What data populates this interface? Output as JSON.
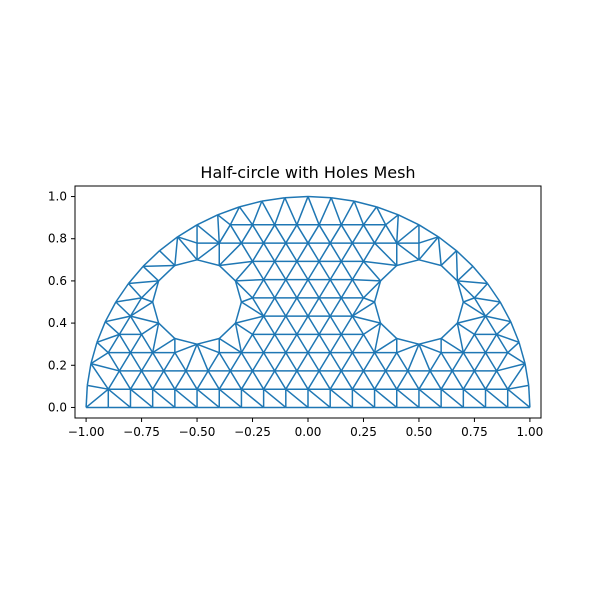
{
  "chart_data": {
    "type": "mesh",
    "title": "Half-circle with Holes Mesh",
    "xlabel": "",
    "ylabel": "",
    "xlim": [
      -1.05,
      1.05
    ],
    "ylim": [
      -0.05,
      1.05
    ],
    "aspect": "equal",
    "grid": false,
    "legend": "none",
    "line_color": "#1f77b4",
    "outer_radius": 1.0,
    "holes": [
      {
        "center": [
          -0.5,
          0.5
        ],
        "radius": 0.2
      },
      {
        "center": [
          0.5,
          0.5
        ],
        "radius": 0.2
      }
    ],
    "mesh_spacing": 0.1,
    "xticks": [
      {
        "value": -1.0,
        "label": "−1.00"
      },
      {
        "value": -0.75,
        "label": "−0.75"
      },
      {
        "value": -0.5,
        "label": "−0.50"
      },
      {
        "value": -0.25,
        "label": "−0.25"
      },
      {
        "value": 0.0,
        "label": "0.00"
      },
      {
        "value": 0.25,
        "label": "0.25"
      },
      {
        "value": 0.5,
        "label": "0.50"
      },
      {
        "value": 0.75,
        "label": "0.75"
      },
      {
        "value": 1.0,
        "label": "1.00"
      }
    ],
    "yticks": [
      {
        "value": 0.0,
        "label": "0.0"
      },
      {
        "value": 0.2,
        "label": "0.2"
      },
      {
        "value": 0.4,
        "label": "0.4"
      },
      {
        "value": 0.6,
        "label": "0.6"
      },
      {
        "value": 0.8,
        "label": "0.8"
      },
      {
        "value": 1.0,
        "label": "1.0"
      }
    ]
  }
}
